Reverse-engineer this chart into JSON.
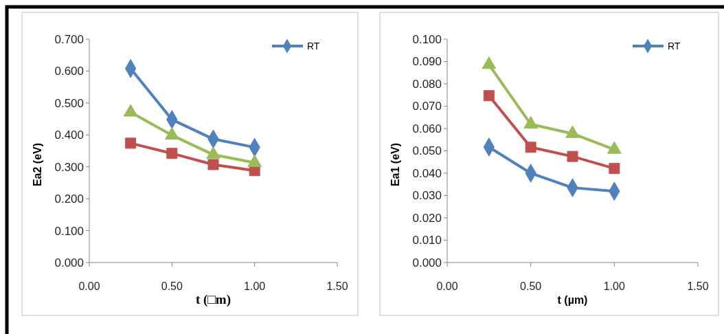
{
  "chart_data": [
    {
      "type": "line",
      "xlabel": "t (□m)",
      "ylabel": "Ea2 (eV)",
      "xlim": [
        0,
        1.5
      ],
      "xticks": [
        {
          "value": 0,
          "label": "0.00"
        },
        {
          "value": 0.5,
          "label": "0.50"
        },
        {
          "value": 1,
          "label": "1.00"
        },
        {
          "value": 1.5,
          "label": "1.50"
        }
      ],
      "ylim": [
        0,
        0.7
      ],
      "yticks": [
        {
          "value": 0,
          "label": "0.000"
        },
        {
          "value": 0.1,
          "label": "0.100"
        },
        {
          "value": 0.2,
          "label": "0.200"
        },
        {
          "value": 0.3,
          "label": "0.300"
        },
        {
          "value": 0.4,
          "label": "0.400"
        },
        {
          "value": 0.5,
          "label": "0.500"
        },
        {
          "value": 0.6,
          "label": "0.600"
        },
        {
          "value": 0.7,
          "label": "0.700"
        }
      ],
      "grid": false,
      "legend": "top right",
      "x": [
        0.25,
        0.5,
        0.75,
        1.0
      ],
      "series": [
        {
          "name": "RT",
          "color": "#4f81bd",
          "marker": "diamond",
          "values": [
            0.608,
            0.448,
            0.387,
            0.361
          ]
        },
        {
          "color": "#c0504d",
          "marker": "square",
          "values": [
            0.374,
            0.342,
            0.307,
            0.288
          ]
        },
        {
          "color": "#9bbb59",
          "marker": "triangle",
          "values": [
            0.471,
            0.399,
            0.338,
            0.313
          ]
        }
      ]
    },
    {
      "type": "line",
      "xlabel": "t (µm)",
      "ylabel": "Ea1 (eV)",
      "xlim": [
        0,
        1.5
      ],
      "xticks": [
        {
          "value": 0,
          "label": "0.00"
        },
        {
          "value": 0.5,
          "label": "0.50"
        },
        {
          "value": 1,
          "label": "1.00"
        },
        {
          "value": 1.5,
          "label": "1.50"
        }
      ],
      "ylim": [
        0,
        0.1
      ],
      "yticks": [
        {
          "value": 0,
          "label": "0.000"
        },
        {
          "value": 0.01,
          "label": "0.010"
        },
        {
          "value": 0.02,
          "label": "0.020"
        },
        {
          "value": 0.03,
          "label": "0.030"
        },
        {
          "value": 0.04,
          "label": "0.040"
        },
        {
          "value": 0.05,
          "label": "0.050"
        },
        {
          "value": 0.06,
          "label": "0.060"
        },
        {
          "value": 0.07,
          "label": "0.070"
        },
        {
          "value": 0.08,
          "label": "0.080"
        },
        {
          "value": 0.09,
          "label": "0.090"
        },
        {
          "value": 0.1,
          "label": "0.100"
        }
      ],
      "grid": false,
      "legend": "top right",
      "x": [
        0.25,
        0.5,
        0.75,
        1.0
      ],
      "series": [
        {
          "name": "RT",
          "color": "#4f81bd",
          "marker": "diamond",
          "values": [
            0.0517,
            0.04,
            0.0335,
            0.0319
          ]
        },
        {
          "color": "#c0504d",
          "marker": "square",
          "values": [
            0.0747,
            0.0516,
            0.0475,
            0.0421
          ]
        },
        {
          "color": "#9bbb59",
          "marker": "triangle",
          "values": [
            0.0886,
            0.0619,
            0.0577,
            0.0506
          ]
        }
      ]
    }
  ]
}
